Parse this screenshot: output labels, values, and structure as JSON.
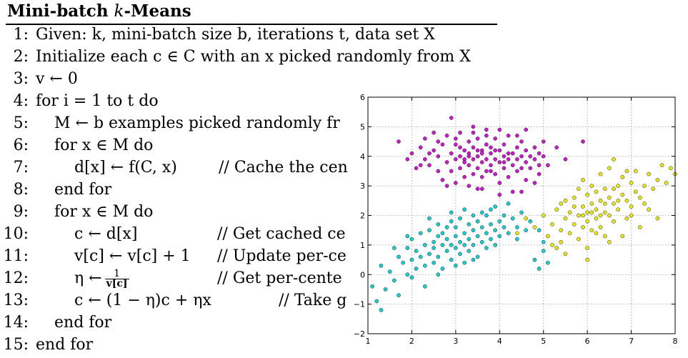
{
  "algorithm": {
    "title": "Mini-batch k-Means",
    "title_prefix": "Mini-batch ",
    "title_k": "k",
    "title_suffix": "-Means",
    "lines": [
      {
        "num": "1:",
        "indent": 0,
        "text": "Given: k, mini-batch size b, iterations t, data set X",
        "comment": ""
      },
      {
        "num": "2:",
        "indent": 0,
        "text": "Initialize each c ∈ C with an x picked randomly from X",
        "comment": ""
      },
      {
        "num": "3:",
        "indent": 0,
        "text": "v ← 0",
        "comment": ""
      },
      {
        "num": "4:",
        "indent": 0,
        "text": "for i = 1 to t do",
        "comment": ""
      },
      {
        "num": "5:",
        "indent": 1,
        "text": "M ← b examples picked randomly fr",
        "comment": ""
      },
      {
        "num": "6:",
        "indent": 1,
        "text": "for x ∈ M do",
        "comment": ""
      },
      {
        "num": "7:",
        "indent": 2,
        "text": "d[x] ← f(C, x)",
        "comment": "// Cache the cen"
      },
      {
        "num": "8:",
        "indent": 1,
        "text": "end for",
        "comment": ""
      },
      {
        "num": "9:",
        "indent": 1,
        "text": "for x ∈ M do",
        "comment": ""
      },
      {
        "num": "10:",
        "indent": 2,
        "text": "c ← d[x]",
        "comment": "// Get cached ce"
      },
      {
        "num": "11:",
        "indent": 2,
        "text": "v[c] ← v[c] + 1",
        "comment": "// Update per-ce"
      },
      {
        "num": "12:",
        "indent": 2,
        "text": "η ←",
        "comment": "// Get per-cente",
        "frac_num": "1",
        "frac_den": "v[c]"
      },
      {
        "num": "13:",
        "indent": 2,
        "text": "c ← (1 − η)c + ηx",
        "comment": "// Take g"
      },
      {
        "num": "14:",
        "indent": 1,
        "text": "end for",
        "comment": ""
      },
      {
        "num": "15:",
        "indent": 0,
        "text": "end for",
        "comment": ""
      }
    ]
  },
  "chart_data": {
    "type": "scatter",
    "title": "",
    "xlabel": "",
    "ylabel": "",
    "xlim": [
      1,
      8
    ],
    "ylim": [
      -2,
      6
    ],
    "xticks": [
      "1",
      "2",
      "3",
      "4",
      "5",
      "6",
      "7",
      "8"
    ],
    "yticks": [
      "−2",
      "−1",
      "0",
      "1",
      "2",
      "3",
      "4",
      "5",
      "6"
    ],
    "grid": true,
    "series": [
      {
        "color": "#c81ec8",
        "points": [
          [
            1.7,
            4.5
          ],
          [
            1.9,
            3.9
          ],
          [
            2.0,
            4.1
          ],
          [
            2.1,
            3.6
          ],
          [
            2.2,
            4.3
          ],
          [
            2.3,
            3.9
          ],
          [
            2.3,
            4.6
          ],
          [
            2.4,
            3.7
          ],
          [
            2.5,
            4.2
          ],
          [
            2.5,
            4.8
          ],
          [
            2.6,
            3.5
          ],
          [
            2.6,
            4.0
          ],
          [
            2.7,
            4.4
          ],
          [
            2.7,
            3.2
          ],
          [
            2.8,
            3.8
          ],
          [
            2.8,
            4.7
          ],
          [
            2.9,
            4.1
          ],
          [
            2.9,
            3.5
          ],
          [
            2.9,
            5.3
          ],
          [
            3.0,
            3.9
          ],
          [
            3.0,
            4.4
          ],
          [
            3.0,
            3.1
          ],
          [
            3.1,
            4.0
          ],
          [
            3.1,
            3.6
          ],
          [
            3.1,
            4.8
          ],
          [
            3.2,
            4.2
          ],
          [
            3.2,
            3.3
          ],
          [
            3.2,
            3.9
          ],
          [
            3.3,
            4.5
          ],
          [
            3.3,
            3.7
          ],
          [
            3.3,
            4.1
          ],
          [
            3.4,
            3.4
          ],
          [
            3.4,
            4.3
          ],
          [
            3.4,
            3.9
          ],
          [
            3.4,
            5.0
          ],
          [
            3.5,
            4.0
          ],
          [
            3.5,
            3.6
          ],
          [
            3.5,
            4.6
          ],
          [
            3.5,
            2.9
          ],
          [
            3.6,
            4.2
          ],
          [
            3.6,
            3.8
          ],
          [
            3.6,
            3.3
          ],
          [
            3.7,
            4.4
          ],
          [
            3.7,
            3.9
          ],
          [
            3.7,
            3.5
          ],
          [
            3.7,
            4.9
          ],
          [
            3.8,
            4.1
          ],
          [
            3.8,
            3.7
          ],
          [
            3.8,
            4.3
          ],
          [
            3.9,
            3.9
          ],
          [
            3.9,
            3.4
          ],
          [
            3.9,
            4.6
          ],
          [
            4.0,
            4.2
          ],
          [
            4.0,
            3.8
          ],
          [
            4.0,
            3.1
          ],
          [
            4.0,
            4.9
          ],
          [
            4.1,
            4.0
          ],
          [
            4.1,
            3.6
          ],
          [
            4.1,
            4.4
          ],
          [
            4.2,
            3.9
          ],
          [
            4.2,
            3.3
          ],
          [
            4.2,
            4.7
          ],
          [
            4.3,
            4.1
          ],
          [
            4.3,
            3.7
          ],
          [
            4.3,
            2.8
          ],
          [
            4.4,
            4.3
          ],
          [
            4.4,
            3.5
          ],
          [
            4.4,
            3.9
          ],
          [
            4.5,
            4.0
          ],
          [
            4.5,
            3.6
          ],
          [
            4.5,
            4.5
          ],
          [
            4.6,
            4.2
          ],
          [
            4.6,
            3.8
          ],
          [
            4.6,
            3.2
          ],
          [
            4.7,
            4.0
          ],
          [
            4.7,
            3.6
          ],
          [
            4.8,
            4.3
          ],
          [
            4.8,
            3.9
          ],
          [
            4.9,
            4.1
          ],
          [
            4.9,
            3.4
          ],
          [
            5.0,
            4.0
          ],
          [
            5.0,
            4.5
          ],
          [
            5.1,
            3.7
          ],
          [
            5.3,
            4.3
          ],
          [
            5.5,
            3.9
          ],
          [
            5.9,
            4.5
          ],
          [
            3.1,
            4.3
          ],
          [
            3.3,
            4.0
          ],
          [
            3.6,
            4.1
          ],
          [
            3.9,
            4.2
          ],
          [
            4.1,
            3.8
          ],
          [
            3.2,
            3.8
          ],
          [
            3.5,
            4.2
          ],
          [
            3.8,
            3.5
          ],
          [
            4.2,
            4.1
          ],
          [
            2.6,
            4.5
          ],
          [
            3.0,
            4.6
          ],
          [
            4.4,
            4.7
          ],
          [
            4.8,
            3.1
          ],
          [
            3.6,
            2.9
          ],
          [
            4.5,
            2.8
          ],
          [
            3.3,
            3.0
          ],
          [
            2.4,
            4.1
          ],
          [
            4.9,
            3.7
          ],
          [
            2.8,
            3.0
          ],
          [
            4.0,
            2.7
          ],
          [
            3.7,
            4.7
          ],
          [
            4.6,
            4.9
          ],
          [
            3.4,
            4.8
          ],
          [
            2.2,
            3.7
          ]
        ]
      },
      {
        "color": "#1ecdcd",
        "points": [
          [
            1.1,
            -0.4
          ],
          [
            1.2,
            -0.9
          ],
          [
            1.3,
            -1.2
          ],
          [
            1.3,
            0.3
          ],
          [
            1.4,
            -0.5
          ],
          [
            1.5,
            0.1
          ],
          [
            1.6,
            -0.2
          ],
          [
            1.7,
            0.6
          ],
          [
            1.7,
            -0.7
          ],
          [
            1.8,
            0.4
          ],
          [
            1.9,
            0.9
          ],
          [
            1.9,
            0.0
          ],
          [
            2.0,
            0.5
          ],
          [
            2.0,
            1.2
          ],
          [
            2.1,
            0.2
          ],
          [
            2.1,
            0.8
          ],
          [
            2.2,
            0.6
          ],
          [
            2.2,
            1.4
          ],
          [
            2.3,
            0.3
          ],
          [
            2.3,
            1.0
          ],
          [
            2.4,
            0.7
          ],
          [
            2.4,
            1.5
          ],
          [
            2.5,
            0.4
          ],
          [
            2.5,
            1.1
          ],
          [
            2.5,
            0.9
          ],
          [
            2.6,
            1.3
          ],
          [
            2.6,
            0.6
          ],
          [
            2.6,
            1.7
          ],
          [
            2.7,
            1.0
          ],
          [
            2.7,
            0.2
          ],
          [
            2.7,
            1.4
          ],
          [
            2.8,
            0.8
          ],
          [
            2.8,
            1.6
          ],
          [
            2.8,
            1.2
          ],
          [
            2.9,
            1.0
          ],
          [
            2.9,
            0.5
          ],
          [
            2.9,
            1.8
          ],
          [
            3.0,
            1.3
          ],
          [
            3.0,
            0.9
          ],
          [
            3.0,
            1.6
          ],
          [
            3.1,
            1.1
          ],
          [
            3.1,
            0.7
          ],
          [
            3.1,
            1.9
          ],
          [
            3.2,
            1.4
          ],
          [
            3.2,
            1.0
          ],
          [
            3.2,
            0.4
          ],
          [
            3.3,
            1.2
          ],
          [
            3.3,
            1.7
          ],
          [
            3.3,
            0.8
          ],
          [
            3.4,
            1.5
          ],
          [
            3.4,
            1.0
          ],
          [
            3.4,
            2.0
          ],
          [
            3.5,
            1.3
          ],
          [
            3.5,
            0.6
          ],
          [
            3.5,
            1.8
          ],
          [
            3.6,
            1.1
          ],
          [
            3.6,
            1.6
          ],
          [
            3.6,
            2.1
          ],
          [
            3.7,
            1.4
          ],
          [
            3.7,
            0.9
          ],
          [
            3.8,
            1.7
          ],
          [
            3.8,
            1.2
          ],
          [
            3.8,
            2.2
          ],
          [
            3.9,
            1.5
          ],
          [
            3.9,
            1.0
          ],
          [
            4.0,
            1.8
          ],
          [
            4.0,
            1.3
          ],
          [
            4.1,
            1.6
          ],
          [
            4.1,
            2.0
          ],
          [
            4.2,
            1.4
          ],
          [
            4.3,
            1.9
          ],
          [
            4.4,
            1.6
          ],
          [
            4.5,
            2.1
          ],
          [
            4.6,
            1.5
          ],
          [
            4.7,
            1.8
          ],
          [
            4.8,
            0.5
          ],
          [
            4.9,
            0.2
          ],
          [
            5.0,
            0.8
          ],
          [
            5.1,
            0.4
          ],
          [
            2.3,
            -0.4
          ],
          [
            1.6,
            0.9
          ],
          [
            2.0,
            -0.1
          ],
          [
            3.0,
            0.3
          ],
          [
            3.4,
            0.5
          ],
          [
            2.4,
            1.9
          ],
          [
            3.9,
            2.3
          ],
          [
            4.2,
            2.4
          ],
          [
            4.9,
            1.5
          ],
          [
            5.0,
            1.1
          ],
          [
            1.9,
            1.3
          ],
          [
            2.6,
            0.0
          ],
          [
            3.2,
            2.2
          ],
          [
            3.7,
            2.0
          ],
          [
            4.4,
            1.2
          ],
          [
            2.9,
            2.1
          ]
        ]
      },
      {
        "color": "#e6e619",
        "points": [
          [
            4.4,
            1.4
          ],
          [
            4.6,
            1.9
          ],
          [
            4.8,
            1.6
          ],
          [
            5.0,
            2.0
          ],
          [
            5.1,
            1.3
          ],
          [
            5.2,
            1.7
          ],
          [
            5.3,
            0.9
          ],
          [
            5.3,
            2.2
          ],
          [
            5.4,
            1.5
          ],
          [
            5.4,
            1.1
          ],
          [
            5.5,
            1.9
          ],
          [
            5.5,
            2.5
          ],
          [
            5.6,
            1.4
          ],
          [
            5.6,
            2.1
          ],
          [
            5.7,
            1.7
          ],
          [
            5.7,
            2.6
          ],
          [
            5.8,
            2.0
          ],
          [
            5.8,
            1.2
          ],
          [
            5.8,
            2.9
          ],
          [
            5.9,
            2.3
          ],
          [
            5.9,
            1.6
          ],
          [
            5.9,
            3.2
          ],
          [
            6.0,
            2.1
          ],
          [
            6.0,
            1.8
          ],
          [
            6.0,
            2.7
          ],
          [
            6.0,
            0.9
          ],
          [
            6.1,
            2.4
          ],
          [
            6.1,
            1.5
          ],
          [
            6.1,
            3.0
          ],
          [
            6.2,
            2.2
          ],
          [
            6.2,
            1.9
          ],
          [
            6.2,
            2.8
          ],
          [
            6.3,
            2.5
          ],
          [
            6.3,
            1.6
          ],
          [
            6.3,
            3.4
          ],
          [
            6.4,
            2.1
          ],
          [
            6.4,
            2.9
          ],
          [
            6.4,
            1.3
          ],
          [
            6.5,
            2.6
          ],
          [
            6.5,
            2.0
          ],
          [
            6.5,
            3.6
          ],
          [
            6.6,
            2.4
          ],
          [
            6.6,
            1.8
          ],
          [
            6.7,
            3.0
          ],
          [
            6.7,
            2.2
          ],
          [
            6.8,
            2.7
          ],
          [
            6.8,
            3.3
          ],
          [
            6.9,
            2.5
          ],
          [
            6.9,
            1.9
          ],
          [
            7.0,
            3.1
          ],
          [
            7.0,
            2.3
          ],
          [
            7.1,
            2.8
          ],
          [
            7.1,
            3.5
          ],
          [
            7.2,
            2.6
          ],
          [
            7.3,
            3.0
          ],
          [
            7.4,
            2.2
          ],
          [
            7.4,
            3.4
          ],
          [
            7.5,
            2.9
          ],
          [
            7.6,
            3.2
          ],
          [
            7.7,
            3.7
          ],
          [
            7.8,
            3.1
          ],
          [
            7.9,
            3.6
          ],
          [
            8.0,
            3.4
          ],
          [
            7.6,
            1.9
          ],
          [
            7.2,
            1.6
          ],
          [
            6.6,
            3.9
          ],
          [
            6.8,
            1.3
          ],
          [
            6.0,
            0.5
          ],
          [
            5.2,
            1.0
          ],
          [
            5.5,
            0.7
          ],
          [
            6.3,
            2.0
          ],
          [
            6.1,
            2.1
          ],
          [
            5.9,
            2.0
          ],
          [
            6.4,
            2.4
          ],
          [
            6.7,
            2.5
          ],
          [
            6.2,
            1.4
          ],
          [
            5.7,
            2.3
          ],
          [
            6.5,
            1.1
          ],
          [
            7.0,
            2.0
          ],
          [
            7.3,
            2.4
          ],
          [
            6.9,
            3.5
          ],
          [
            5.4,
            2.4
          ],
          [
            6.6,
            2.9
          ]
        ]
      }
    ]
  }
}
